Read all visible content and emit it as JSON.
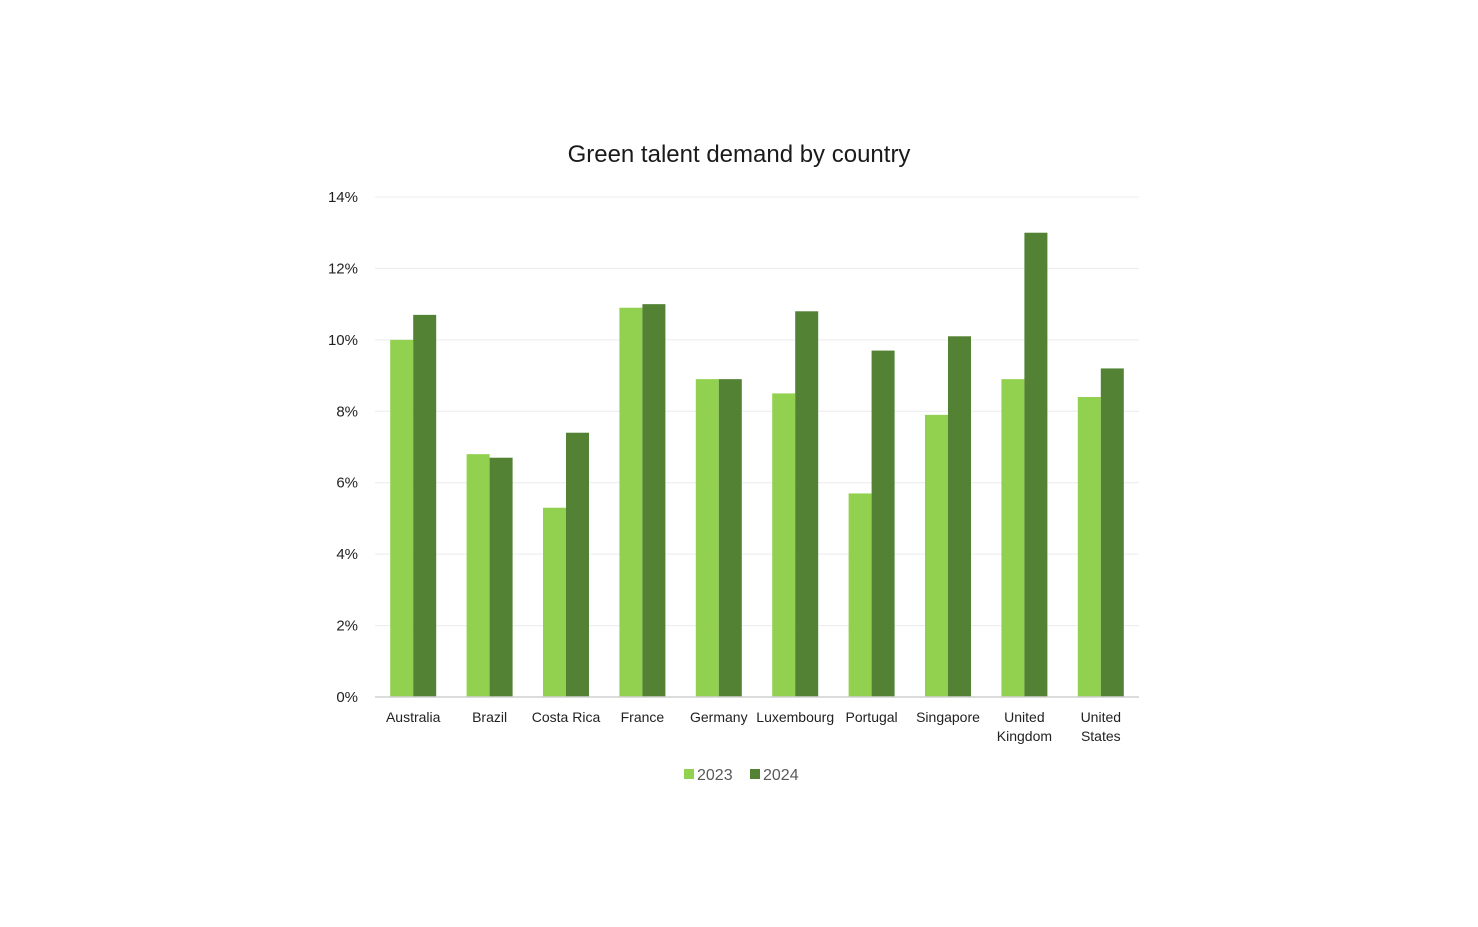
{
  "chart_data": {
    "type": "bar",
    "title": "Green talent demand by country",
    "xlabel": "",
    "ylabel": "",
    "categories": [
      [
        "Australia"
      ],
      [
        "Brazil"
      ],
      [
        "Costa Rica"
      ],
      [
        "France"
      ],
      [
        "Germany"
      ],
      [
        "Luxembourg"
      ],
      [
        "Portugal"
      ],
      [
        "Singapore"
      ],
      [
        "United",
        "Kingdom"
      ],
      [
        "United",
        "States"
      ]
    ],
    "series": [
      {
        "name": "2023",
        "color": "#92d050",
        "values": [
          10.0,
          6.8,
          5.3,
          10.9,
          8.9,
          8.5,
          5.7,
          7.9,
          8.9,
          8.4
        ]
      },
      {
        "name": "2024",
        "color": "#548235",
        "values": [
          10.7,
          6.7,
          7.4,
          11.0,
          8.9,
          10.8,
          9.7,
          10.1,
          13.0,
          9.2
        ]
      }
    ],
    "ylim": [
      0,
      14
    ],
    "yticks": [
      {
        "value": 0,
        "label": "0%"
      },
      {
        "value": 2,
        "label": "2%"
      },
      {
        "value": 4,
        "label": "4%"
      },
      {
        "value": 6,
        "label": "6%"
      },
      {
        "value": 8,
        "label": "8%"
      },
      {
        "value": 10,
        "label": "10%"
      },
      {
        "value": 12,
        "label": "12%"
      },
      {
        "value": 14,
        "label": "14%"
      }
    ],
    "grid": true,
    "legend_position": "bottom-center"
  }
}
